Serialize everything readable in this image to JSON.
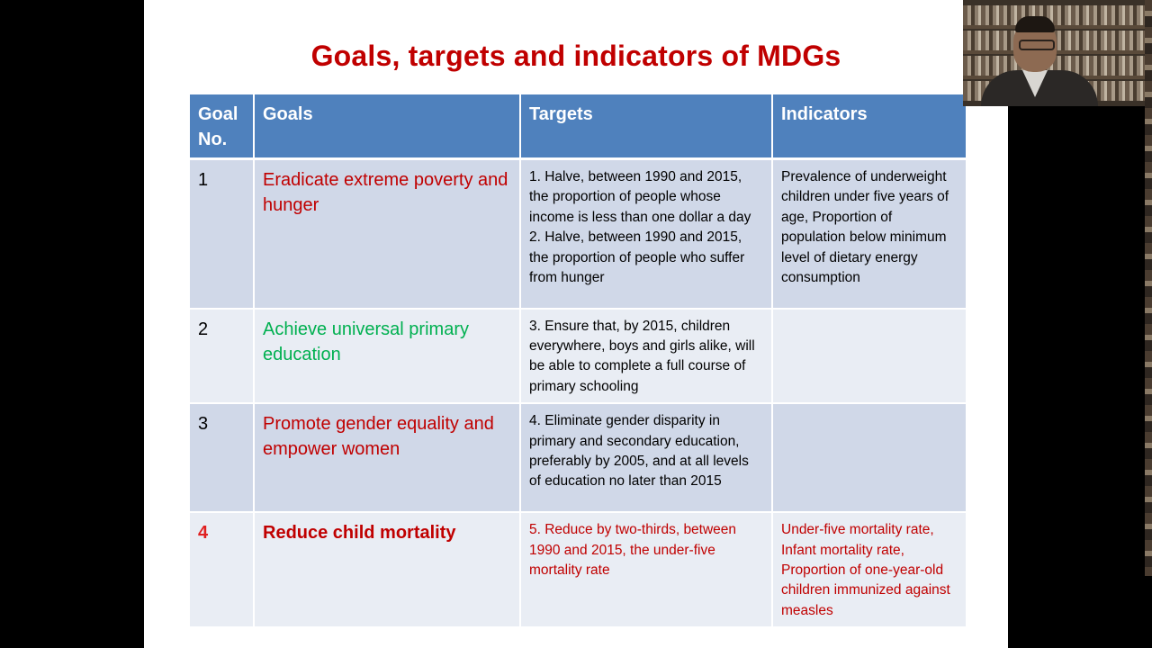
{
  "slide": {
    "title": "Goals, targets and indicators of MDGs"
  },
  "table": {
    "headers": [
      "Goal No.",
      "Goals",
      "Targets",
      "Indicators"
    ],
    "rows": [
      {
        "number": "1",
        "goal": "Eradicate extreme poverty and hunger",
        "targets": [
          "1. Halve, between 1990 and 2015, the proportion of people whose income is less than one dollar a day",
          "2. Halve, between 1990 and 2015, the proportion of people who suffer from hunger"
        ],
        "indicators": "Prevalence of underweight children under five years of age, Proportion of population below minimum level of dietary energy consumption"
      },
      {
        "number": "2",
        "goal": "Achieve universal primary education",
        "targets": [
          "3. Ensure that, by 2015, children everywhere, boys and girls alike, will be able to complete a full course of primary schooling"
        ],
        "indicators": ""
      },
      {
        "number": "3",
        "goal": "Promote gender equality and empower women",
        "targets": [
          "4. Eliminate gender disparity in primary and secondary education, preferably by 2005, and at all levels of education no later than 2015"
        ],
        "indicators": ""
      },
      {
        "number": "4",
        "goal": "Reduce child mortality",
        "targets": [
          "5. Reduce by two-thirds, between 1990 and 2015, the under-five mortality rate"
        ],
        "indicators": "Under-five mortality rate, Infant mortality rate, Proportion of one-year-old children immunized against measles"
      }
    ]
  },
  "colors": {
    "title": "#c00000",
    "header_bg": "#4f81bd",
    "row_odd": "#d0d8e8",
    "row_even": "#e9edf4",
    "goal_red": "#c00000",
    "goal_green": "#00b050"
  }
}
